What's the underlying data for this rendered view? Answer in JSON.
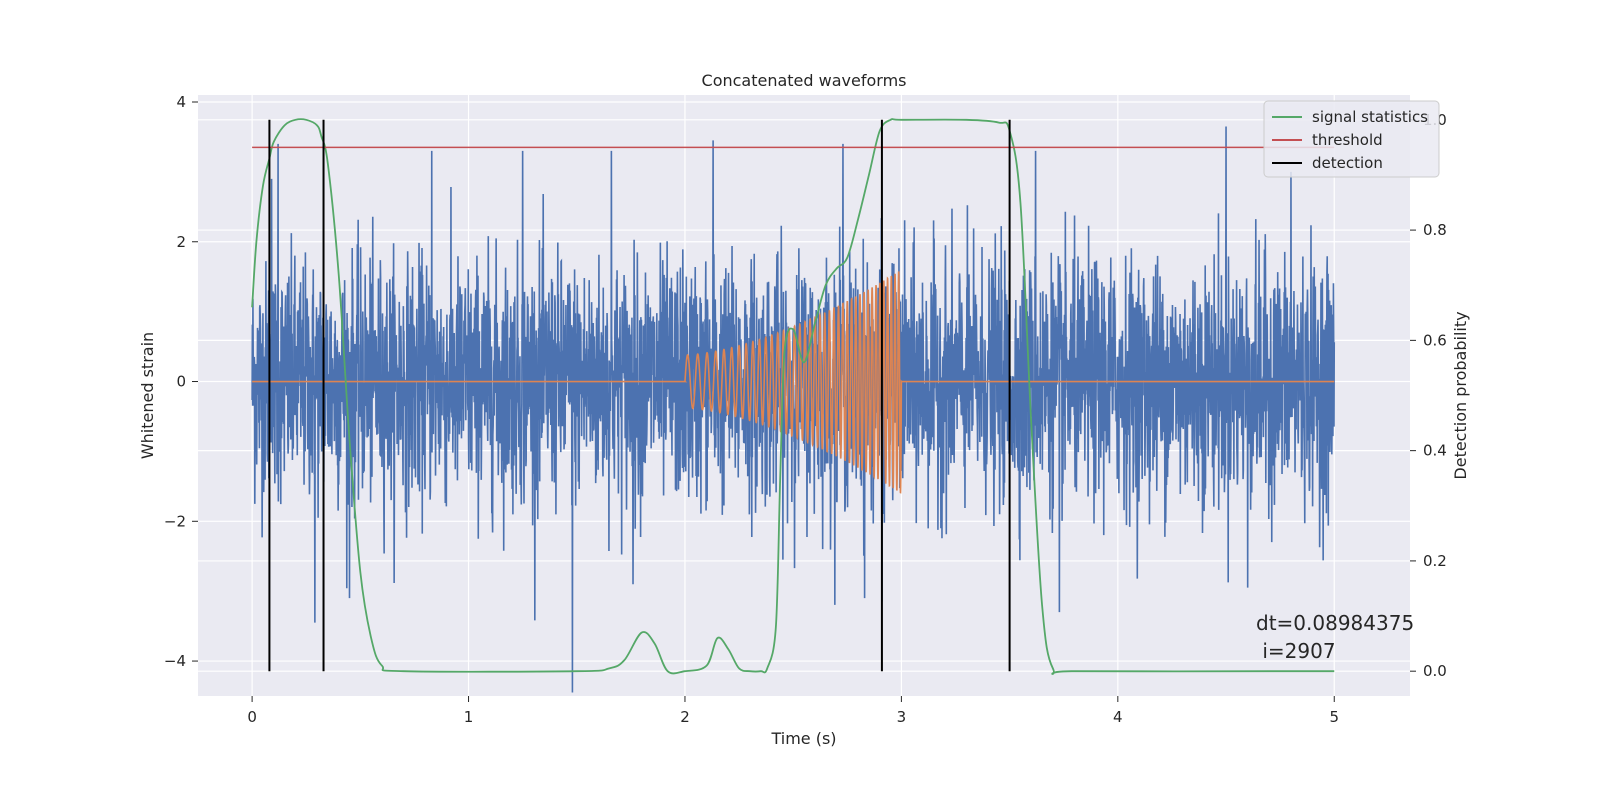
{
  "chart_data": {
    "type": "line",
    "title": "Concatenated waveforms",
    "xlabel": "Time (s)",
    "ylabel": "Whitened strain",
    "y2label": "Detection probability",
    "xlim": [
      -0.25,
      5.35
    ],
    "ylim": [
      -4.5,
      4.1
    ],
    "y2lim": [
      -0.045,
      1.045
    ],
    "xticks": [
      0,
      1,
      2,
      3,
      4,
      5
    ],
    "yticks": [
      -4,
      -2,
      0,
      2,
      4
    ],
    "y2ticks": [
      0.0,
      0.2,
      0.4,
      0.6,
      0.8,
      1.0
    ],
    "xtick_labels": [
      "0",
      "1",
      "2",
      "3",
      "4",
      "5"
    ],
    "ytick_labels": [
      "−4",
      "−2",
      "0",
      "2",
      "4"
    ],
    "y2tick_labels": [
      "0.0",
      "0.2",
      "0.4",
      "0.6",
      "0.8",
      "1.0"
    ],
    "grid": true,
    "legend_position": "top-right",
    "legend": [
      "signal statistics",
      "threshold",
      "detection"
    ],
    "colors": {
      "strain": "#4c72b0",
      "injection": "#dd8452",
      "signal_statistics": "#55a868",
      "threshold": "#c44e52",
      "detection": "#000000",
      "background": "#eaeaf2",
      "grid": "#ffffff"
    },
    "series": [
      {
        "name": "",
        "axis": "left",
        "description": "whitened strain noise",
        "x_range": [
          0,
          5
        ],
        "amplitude_typical": 1.2,
        "amplitude_max": 3.7,
        "spikes": [
          {
            "x": 0.09,
            "y": 2.9
          },
          {
            "x": 0.12,
            "y": 3.4
          },
          {
            "x": 0.29,
            "y": -3.45
          },
          {
            "x": 0.45,
            "y": -3.1
          },
          {
            "x": 0.83,
            "y": 3.3
          },
          {
            "x": 1.25,
            "y": 3.3
          },
          {
            "x": 1.48,
            "y": -4.45
          },
          {
            "x": 1.66,
            "y": 3.3
          },
          {
            "x": 1.76,
            "y": -2.9
          },
          {
            "x": 2.13,
            "y": 3.45
          },
          {
            "x": 2.73,
            "y": 3.4
          },
          {
            "x": 2.83,
            "y": -3.1
          },
          {
            "x": 2.91,
            "y": -3.15
          },
          {
            "x": 3.62,
            "y": 3.3
          },
          {
            "x": 3.73,
            "y": -3.3
          },
          {
            "x": 4.5,
            "y": 3.65
          },
          {
            "x": 4.6,
            "y": -2.95
          },
          {
            "x": 4.8,
            "y": 3.0
          }
        ]
      },
      {
        "name": "",
        "axis": "left",
        "description": "injected chirp waveform",
        "x_range": [
          0,
          5
        ],
        "chirp_start": 2.0,
        "chirp_end": 3.0,
        "amplitude_start": 0.38,
        "amplitude_end": 1.6,
        "freq_start_hz": 20,
        "freq_end_hz": 60
      },
      {
        "name": "signal statistics",
        "axis": "right",
        "x": [
          0.0,
          0.02,
          0.05,
          0.08,
          0.1,
          0.15,
          0.2,
          0.25,
          0.3,
          0.32,
          0.35,
          0.4,
          0.45,
          0.5,
          0.55,
          0.6,
          0.7,
          1.5,
          1.65,
          1.72,
          1.8,
          1.86,
          1.92,
          2.0,
          2.1,
          2.15,
          2.2,
          2.25,
          2.3,
          2.35,
          2.38,
          2.42,
          2.44,
          2.46,
          2.5,
          2.55,
          2.6,
          2.65,
          2.7,
          2.75,
          2.8,
          2.85,
          2.9,
          2.95,
          3.0,
          3.3,
          3.45,
          3.5,
          3.55,
          3.6,
          3.65,
          3.7,
          3.8,
          4.7,
          5.0
        ],
        "y": [
          0.66,
          0.78,
          0.88,
          0.93,
          0.96,
          0.99,
          1.0,
          1.0,
          0.99,
          0.97,
          0.92,
          0.72,
          0.42,
          0.18,
          0.06,
          0.01,
          0.0,
          0.0,
          0.005,
          0.02,
          0.07,
          0.05,
          0.0,
          0.0,
          0.01,
          0.06,
          0.04,
          0.005,
          0.0,
          0.0,
          0.005,
          0.08,
          0.35,
          0.58,
          0.62,
          0.56,
          0.63,
          0.7,
          0.73,
          0.75,
          0.82,
          0.9,
          0.98,
          1.0,
          1.0,
          1.0,
          0.995,
          0.98,
          0.85,
          0.45,
          0.12,
          0.005,
          0.0,
          0.0,
          0.0
        ]
      },
      {
        "name": "threshold",
        "axis": "right",
        "x": [
          0,
          5
        ],
        "y": [
          0.95,
          0.95
        ]
      }
    ],
    "detections": [
      0.08,
      0.33,
      2.91,
      3.5
    ],
    "annotation": {
      "line1": "dt=0.08984375",
      "line2": " i=2907"
    }
  }
}
